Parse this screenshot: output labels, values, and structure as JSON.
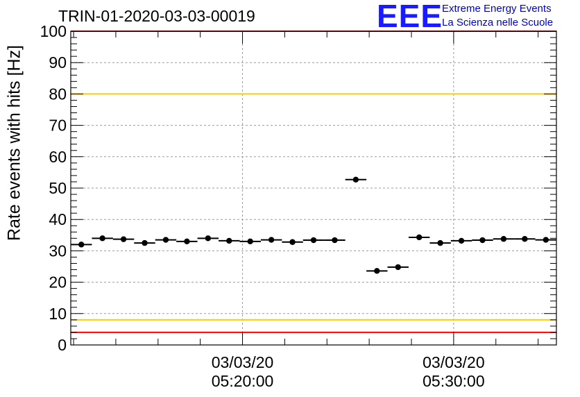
{
  "chart_data": {
    "type": "scatter",
    "title": "TRIN-01-2020-03-03-00019",
    "xlabel": "",
    "ylabel": "Rate events with hits [Hz]",
    "ylim": [
      0,
      100
    ],
    "xlim": [
      "2020-03-03 05:11:52",
      "2020-03-03 05:34:52"
    ],
    "x_ticks": [
      {
        "value": "2020-03-03 05:20:00",
        "label_date": "03/03/20",
        "label_time": "05:20:00"
      },
      {
        "value": "2020-03-03 05:30:00",
        "label_date": "03/03/20",
        "label_time": "05:30:00"
      }
    ],
    "y_ticks": [
      0,
      10,
      20,
      30,
      40,
      50,
      60,
      70,
      80,
      90,
      100
    ],
    "grid": true,
    "series": [
      {
        "x": [
          "2020-03-03 05:12:22",
          "2020-03-03 05:13:22",
          "2020-03-03 05:14:22",
          "2020-03-03 05:15:22",
          "2020-03-03 05:16:22",
          "2020-03-03 05:17:22",
          "2020-03-03 05:18:22",
          "2020-03-03 05:19:22",
          "2020-03-03 05:20:22",
          "2020-03-03 05:21:22",
          "2020-03-03 05:22:22",
          "2020-03-03 05:23:22",
          "2020-03-03 05:24:22",
          "2020-03-03 05:25:22",
          "2020-03-03 05:26:22",
          "2020-03-03 05:27:22",
          "2020-03-03 05:28:22",
          "2020-03-03 05:29:22",
          "2020-03-03 05:30:22",
          "2020-03-03 05:31:22",
          "2020-03-03 05:32:22",
          "2020-03-03 05:33:22",
          "2020-03-03 05:34:22"
        ],
        "y": [
          32,
          34,
          33.7,
          32.5,
          33.5,
          33,
          34,
          33.2,
          33,
          33.5,
          32.8,
          33.4,
          33.4,
          52.7,
          23.6,
          24.8,
          34.3,
          32.5,
          33.2,
          33.4,
          33.8,
          33.8,
          33.5
        ],
        "bin_width_seconds": 60
      }
    ],
    "reference_lines": [
      {
        "y": 100,
        "color": "#ff0000"
      },
      {
        "y": 80,
        "color": "#ffcc00"
      },
      {
        "y": 8,
        "color": "#ffcc00"
      },
      {
        "y": 4,
        "color": "#ff0000"
      }
    ]
  },
  "logo": {
    "letters": "EEE",
    "line1": "Extreme Energy Events",
    "line2": "La Scienza nelle Scuole"
  },
  "colors": {
    "marker": "#000000",
    "grid": "#9a9a9a",
    "logo": "#1a1aff"
  }
}
